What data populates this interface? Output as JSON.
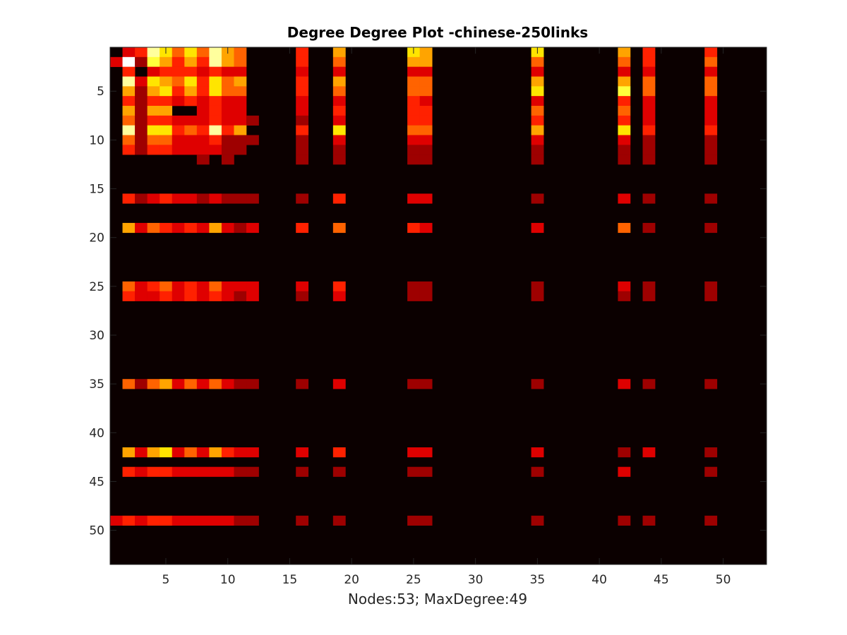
{
  "chart_data": {
    "type": "heatmap",
    "title": "Degree Degree Plot -chinese-250links",
    "xlabel": "Nodes:53; MaxDegree:49",
    "ylabel": "",
    "xlim": [
      0.5,
      53.5
    ],
    "ylim": [
      0.5,
      53.5
    ],
    "y_direction": "reverse",
    "xticks": [
      5,
      10,
      15,
      20,
      25,
      30,
      35,
      40,
      45,
      50
    ],
    "yticks": [
      5,
      10,
      15,
      20,
      25,
      30,
      35,
      40,
      45,
      50
    ],
    "colormap": "hot",
    "colorscale_max": 10,
    "background_value": 0,
    "colors": {
      "background_cell": "#0b0000",
      "axis": "#262626",
      "frame_bg": "#ffffff"
    },
    "cells": [
      [
        1,
        2,
        3
      ],
      [
        1,
        3,
        4
      ],
      [
        1,
        4,
        9
      ],
      [
        1,
        5,
        7
      ],
      [
        1,
        6,
        5
      ],
      [
        1,
        7,
        7
      ],
      [
        1,
        8,
        5
      ],
      [
        1,
        9,
        9
      ],
      [
        1,
        10,
        6
      ],
      [
        1,
        11,
        5
      ],
      [
        1,
        16,
        4
      ],
      [
        1,
        19,
        6
      ],
      [
        1,
        25,
        7
      ],
      [
        1,
        26,
        6
      ],
      [
        1,
        35,
        7
      ],
      [
        1,
        42,
        6
      ],
      [
        1,
        44,
        4
      ],
      [
        1,
        49,
        4
      ],
      [
        2,
        1,
        3
      ],
      [
        2,
        2,
        10
      ],
      [
        2,
        3,
        2
      ],
      [
        2,
        4,
        8
      ],
      [
        2,
        5,
        6
      ],
      [
        2,
        6,
        4
      ],
      [
        2,
        7,
        6
      ],
      [
        2,
        8,
        4
      ],
      [
        2,
        9,
        9
      ],
      [
        2,
        10,
        6
      ],
      [
        2,
        11,
        5
      ],
      [
        2,
        16,
        4
      ],
      [
        2,
        19,
        5
      ],
      [
        2,
        25,
        6
      ],
      [
        2,
        26,
        6
      ],
      [
        2,
        35,
        5
      ],
      [
        2,
        42,
        5
      ],
      [
        2,
        44,
        4
      ],
      [
        2,
        49,
        5
      ],
      [
        3,
        2,
        4
      ],
      [
        3,
        4,
        3
      ],
      [
        3,
        5,
        4
      ],
      [
        3,
        6,
        4
      ],
      [
        3,
        7,
        4
      ],
      [
        3,
        8,
        3
      ],
      [
        3,
        9,
        4
      ],
      [
        3,
        10,
        3
      ],
      [
        3,
        11,
        3
      ],
      [
        3,
        16,
        3
      ],
      [
        3,
        19,
        3
      ],
      [
        3,
        25,
        3
      ],
      [
        3,
        26,
        3
      ],
      [
        3,
        35,
        3
      ],
      [
        3,
        42,
        3
      ],
      [
        3,
        44,
        3
      ],
      [
        3,
        49,
        3
      ],
      [
        4,
        2,
        9
      ],
      [
        4,
        3,
        3
      ],
      [
        4,
        4,
        7
      ],
      [
        4,
        5,
        6
      ],
      [
        4,
        6,
        5
      ],
      [
        4,
        7,
        7
      ],
      [
        4,
        8,
        4
      ],
      [
        4,
        9,
        7
      ],
      [
        4,
        10,
        5
      ],
      [
        4,
        11,
        6
      ],
      [
        4,
        16,
        4
      ],
      [
        4,
        19,
        6
      ],
      [
        4,
        25,
        5
      ],
      [
        4,
        26,
        5
      ],
      [
        4,
        35,
        6
      ],
      [
        4,
        42,
        6
      ],
      [
        4,
        44,
        5
      ],
      [
        4,
        49,
        5
      ],
      [
        5,
        2,
        6
      ],
      [
        5,
        3,
        2
      ],
      [
        5,
        4,
        6
      ],
      [
        5,
        5,
        7
      ],
      [
        5,
        6,
        4
      ],
      [
        5,
        7,
        6
      ],
      [
        5,
        8,
        4
      ],
      [
        5,
        9,
        7
      ],
      [
        5,
        10,
        5
      ],
      [
        5,
        11,
        5
      ],
      [
        5,
        16,
        4
      ],
      [
        5,
        19,
        5
      ],
      [
        5,
        25,
        5
      ],
      [
        5,
        26,
        5
      ],
      [
        5,
        35,
        7
      ],
      [
        5,
        42,
        8
      ],
      [
        5,
        44,
        5
      ],
      [
        5,
        49,
        5
      ],
      [
        6,
        2,
        4
      ],
      [
        6,
        3,
        2
      ],
      [
        6,
        4,
        4
      ],
      [
        6,
        5,
        4
      ],
      [
        6,
        6,
        3
      ],
      [
        6,
        7,
        4
      ],
      [
        6,
        8,
        3
      ],
      [
        6,
        9,
        4
      ],
      [
        6,
        10,
        3
      ],
      [
        6,
        11,
        3
      ],
      [
        6,
        16,
        3
      ],
      [
        6,
        19,
        3
      ],
      [
        6,
        25,
        4
      ],
      [
        6,
        26,
        3
      ],
      [
        6,
        35,
        3
      ],
      [
        6,
        42,
        4
      ],
      [
        6,
        44,
        3
      ],
      [
        6,
        49,
        3
      ],
      [
        7,
        2,
        6
      ],
      [
        7,
        3,
        2
      ],
      [
        7,
        4,
        6
      ],
      [
        7,
        5,
        6
      ],
      [
        7,
        8,
        3
      ],
      [
        7,
        9,
        4
      ],
      [
        7,
        10,
        3
      ],
      [
        7,
        11,
        3
      ],
      [
        7,
        16,
        3
      ],
      [
        7,
        19,
        4
      ],
      [
        7,
        25,
        4
      ],
      [
        7,
        26,
        4
      ],
      [
        7,
        35,
        5
      ],
      [
        7,
        42,
        5
      ],
      [
        7,
        44,
        3
      ],
      [
        7,
        49,
        3
      ],
      [
        8,
        2,
        5
      ],
      [
        8,
        3,
        2
      ],
      [
        8,
        4,
        4
      ],
      [
        8,
        5,
        4
      ],
      [
        8,
        6,
        3
      ],
      [
        8,
        7,
        3
      ],
      [
        8,
        8,
        3
      ],
      [
        8,
        9,
        4
      ],
      [
        8,
        10,
        3
      ],
      [
        8,
        11,
        3
      ],
      [
        8,
        12,
        2
      ],
      [
        8,
        16,
        2
      ],
      [
        8,
        19,
        3
      ],
      [
        8,
        25,
        4
      ],
      [
        8,
        26,
        4
      ],
      [
        8,
        35,
        4
      ],
      [
        8,
        42,
        4
      ],
      [
        8,
        44,
        3
      ],
      [
        8,
        49,
        3
      ],
      [
        9,
        2,
        9
      ],
      [
        9,
        3,
        2
      ],
      [
        9,
        4,
        7
      ],
      [
        9,
        5,
        7
      ],
      [
        9,
        6,
        4
      ],
      [
        9,
        7,
        5
      ],
      [
        9,
        8,
        4
      ],
      [
        9,
        9,
        9
      ],
      [
        9,
        10,
        4
      ],
      [
        9,
        11,
        6
      ],
      [
        9,
        16,
        4
      ],
      [
        9,
        19,
        7
      ],
      [
        9,
        25,
        5
      ],
      [
        9,
        26,
        5
      ],
      [
        9,
        35,
        6
      ],
      [
        9,
        42,
        7
      ],
      [
        9,
        44,
        4
      ],
      [
        9,
        49,
        4
      ],
      [
        10,
        2,
        5
      ],
      [
        10,
        3,
        2
      ],
      [
        10,
        4,
        5
      ],
      [
        10,
        5,
        5
      ],
      [
        10,
        6,
        3
      ],
      [
        10,
        7,
        3
      ],
      [
        10,
        8,
        3
      ],
      [
        10,
        9,
        4
      ],
      [
        10,
        10,
        2
      ],
      [
        10,
        11,
        2
      ],
      [
        10,
        12,
        2
      ],
      [
        10,
        16,
        2
      ],
      [
        10,
        19,
        3
      ],
      [
        10,
        25,
        3
      ],
      [
        10,
        26,
        3
      ],
      [
        10,
        35,
        3
      ],
      [
        10,
        42,
        3
      ],
      [
        10,
        44,
        2
      ],
      [
        10,
        49,
        2
      ],
      [
        11,
        2,
        4
      ],
      [
        11,
        3,
        2
      ],
      [
        11,
        4,
        4
      ],
      [
        11,
        5,
        4
      ],
      [
        11,
        6,
        3
      ],
      [
        11,
        7,
        3
      ],
      [
        11,
        8,
        3
      ],
      [
        11,
        9,
        3
      ],
      [
        11,
        10,
        2
      ],
      [
        11,
        11,
        2
      ],
      [
        11,
        16,
        2
      ],
      [
        11,
        19,
        2
      ],
      [
        11,
        25,
        2
      ],
      [
        11,
        26,
        2
      ],
      [
        11,
        35,
        2
      ],
      [
        11,
        42,
        2
      ],
      [
        11,
        44,
        2
      ],
      [
        11,
        49,
        2
      ],
      [
        12,
        8,
        2
      ],
      [
        12,
        10,
        2
      ],
      [
        12,
        16,
        2
      ],
      [
        12,
        19,
        2
      ],
      [
        12,
        25,
        2
      ],
      [
        12,
        26,
        2
      ],
      [
        12,
        35,
        2
      ],
      [
        12,
        42,
        2
      ],
      [
        12,
        44,
        2
      ],
      [
        12,
        49,
        2
      ],
      [
        16,
        2,
        4
      ],
      [
        16,
        3,
        2
      ],
      [
        16,
        4,
        3
      ],
      [
        16,
        5,
        4
      ],
      [
        16,
        6,
        3
      ],
      [
        16,
        7,
        3
      ],
      [
        16,
        8,
        2
      ],
      [
        16,
        9,
        3
      ],
      [
        16,
        10,
        2
      ],
      [
        16,
        11,
        2
      ],
      [
        16,
        12,
        2
      ],
      [
        16,
        16,
        2
      ],
      [
        16,
        19,
        4
      ],
      [
        16,
        25,
        3
      ],
      [
        16,
        26,
        3
      ],
      [
        16,
        35,
        2
      ],
      [
        16,
        42,
        3
      ],
      [
        16,
        44,
        2
      ],
      [
        16,
        49,
        2
      ],
      [
        19,
        2,
        6
      ],
      [
        19,
        3,
        3
      ],
      [
        19,
        4,
        5
      ],
      [
        19,
        5,
        4
      ],
      [
        19,
        6,
        3
      ],
      [
        19,
        7,
        4
      ],
      [
        19,
        8,
        3
      ],
      [
        19,
        9,
        6
      ],
      [
        19,
        10,
        3
      ],
      [
        19,
        11,
        2
      ],
      [
        19,
        12,
        3
      ],
      [
        19,
        16,
        4
      ],
      [
        19,
        19,
        5
      ],
      [
        19,
        25,
        4
      ],
      [
        19,
        26,
        3
      ],
      [
        19,
        35,
        3
      ],
      [
        19,
        42,
        5
      ],
      [
        19,
        44,
        2
      ],
      [
        19,
        49,
        2
      ],
      [
        25,
        2,
        5
      ],
      [
        25,
        3,
        3
      ],
      [
        25,
        4,
        4
      ],
      [
        25,
        5,
        5
      ],
      [
        25,
        6,
        3
      ],
      [
        25,
        7,
        4
      ],
      [
        25,
        8,
        3
      ],
      [
        25,
        9,
        5
      ],
      [
        25,
        10,
        3
      ],
      [
        25,
        11,
        3
      ],
      [
        25,
        12,
        3
      ],
      [
        25,
        16,
        3
      ],
      [
        25,
        19,
        4
      ],
      [
        25,
        25,
        2
      ],
      [
        25,
        26,
        2
      ],
      [
        25,
        35,
        2
      ],
      [
        25,
        42,
        3
      ],
      [
        25,
        44,
        2
      ],
      [
        25,
        49,
        2
      ],
      [
        26,
        2,
        4
      ],
      [
        26,
        3,
        3
      ],
      [
        26,
        4,
        3
      ],
      [
        26,
        5,
        4
      ],
      [
        26,
        6,
        3
      ],
      [
        26,
        7,
        4
      ],
      [
        26,
        8,
        3
      ],
      [
        26,
        9,
        4
      ],
      [
        26,
        10,
        3
      ],
      [
        26,
        11,
        2
      ],
      [
        26,
        12,
        3
      ],
      [
        26,
        16,
        2
      ],
      [
        26,
        19,
        3
      ],
      [
        26,
        25,
        2
      ],
      [
        26,
        26,
        2
      ],
      [
        26,
        35,
        2
      ],
      [
        26,
        42,
        2
      ],
      [
        26,
        44,
        2
      ],
      [
        26,
        49,
        2
      ],
      [
        35,
        2,
        5
      ],
      [
        35,
        3,
        2
      ],
      [
        35,
        4,
        5
      ],
      [
        35,
        5,
        6
      ],
      [
        35,
        6,
        3
      ],
      [
        35,
        7,
        5
      ],
      [
        35,
        8,
        3
      ],
      [
        35,
        9,
        5
      ],
      [
        35,
        10,
        3
      ],
      [
        35,
        11,
        2
      ],
      [
        35,
        12,
        2
      ],
      [
        35,
        16,
        2
      ],
      [
        35,
        19,
        3
      ],
      [
        35,
        25,
        2
      ],
      [
        35,
        26,
        2
      ],
      [
        35,
        35,
        2
      ],
      [
        35,
        42,
        3
      ],
      [
        35,
        44,
        2
      ],
      [
        35,
        49,
        2
      ],
      [
        42,
        2,
        6
      ],
      [
        42,
        3,
        3
      ],
      [
        42,
        4,
        6
      ],
      [
        42,
        5,
        7
      ],
      [
        42,
        6,
        3
      ],
      [
        42,
        7,
        5
      ],
      [
        42,
        8,
        3
      ],
      [
        42,
        9,
        6
      ],
      [
        42,
        10,
        4
      ],
      [
        42,
        11,
        3
      ],
      [
        42,
        12,
        3
      ],
      [
        42,
        16,
        3
      ],
      [
        42,
        19,
        4
      ],
      [
        42,
        25,
        3
      ],
      [
        42,
        26,
        3
      ],
      [
        42,
        35,
        3
      ],
      [
        42,
        42,
        2
      ],
      [
        42,
        44,
        3
      ],
      [
        42,
        49,
        2
      ],
      [
        44,
        2,
        4
      ],
      [
        44,
        3,
        3
      ],
      [
        44,
        4,
        4
      ],
      [
        44,
        5,
        4
      ],
      [
        44,
        6,
        3
      ],
      [
        44,
        7,
        3
      ],
      [
        44,
        8,
        3
      ],
      [
        44,
        9,
        3
      ],
      [
        44,
        10,
        3
      ],
      [
        44,
        11,
        2
      ],
      [
        44,
        12,
        2
      ],
      [
        44,
        16,
        2
      ],
      [
        44,
        19,
        2
      ],
      [
        44,
        25,
        2
      ],
      [
        44,
        26,
        2
      ],
      [
        44,
        35,
        2
      ],
      [
        44,
        42,
        3
      ],
      [
        44,
        49,
        2
      ],
      [
        49,
        1,
        3
      ],
      [
        49,
        2,
        4
      ],
      [
        49,
        3,
        3
      ],
      [
        49,
        4,
        4
      ],
      [
        49,
        5,
        4
      ],
      [
        49,
        6,
        3
      ],
      [
        49,
        7,
        3
      ],
      [
        49,
        8,
        3
      ],
      [
        49,
        9,
        3
      ],
      [
        49,
        10,
        3
      ],
      [
        49,
        11,
        2
      ],
      [
        49,
        12,
        2
      ],
      [
        49,
        16,
        2
      ],
      [
        49,
        19,
        2
      ],
      [
        49,
        25,
        2
      ],
      [
        49,
        26,
        2
      ],
      [
        49,
        35,
        2
      ],
      [
        49,
        42,
        2
      ],
      [
        49,
        44,
        2
      ],
      [
        49,
        49,
        2
      ]
    ]
  }
}
